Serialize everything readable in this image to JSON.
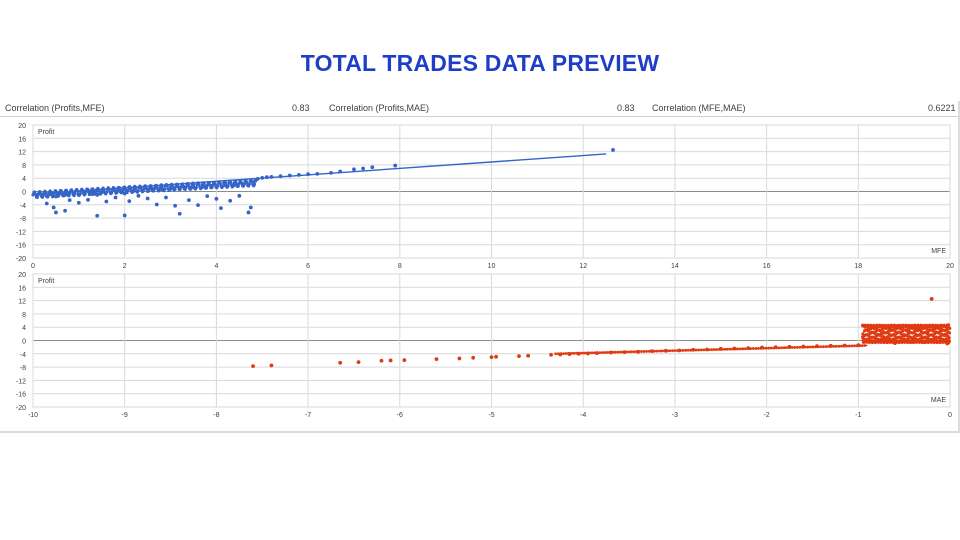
{
  "slide": {
    "title": "TOTAL TRADES DATA PREVIEW"
  },
  "correlations": [
    {
      "label": "Correlation (Profits,MFE)",
      "value": "0.83"
    },
    {
      "label": "Correlation (Profits,MAE)",
      "value": "0.83"
    },
    {
      "label": "Correlation (MFE,MAE)",
      "value": "0.6221"
    }
  ],
  "colors": {
    "mfe_series": "#3565c9",
    "mae_series": "#e03a12",
    "grid": "#d9d9d9",
    "axis_text": "#404040"
  },
  "chart_data": [
    {
      "type": "scatter",
      "title": "",
      "xlabel": "MFE",
      "ylabel": "Profit",
      "xlim": [
        0,
        20
      ],
      "ylim": [
        -20,
        20
      ],
      "xticks": [
        "0",
        "2",
        "4",
        "6",
        "8",
        "10",
        "12",
        "14",
        "16",
        "18",
        "20"
      ],
      "yticks": [
        "20",
        "16",
        "12",
        "8",
        "4",
        "0",
        "-4",
        "-8",
        "-12",
        "-16",
        "-20"
      ],
      "grid": true,
      "trendline": [
        [
          0,
          -0.8
        ],
        [
          12.5,
          11.3
        ]
      ],
      "series": [
        {
          "points": [
            [
              0.1,
              -1.0
            ],
            [
              0.2,
              -1.2
            ],
            [
              0.25,
              -0.5
            ],
            [
              0.3,
              -1.4
            ],
            [
              0.3,
              -3.6
            ],
            [
              0.4,
              -0.8
            ],
            [
              0.45,
              -4.8
            ],
            [
              0.5,
              -1.5
            ],
            [
              0.5,
              -6.3
            ],
            [
              0.6,
              -0.6
            ],
            [
              0.7,
              -5.8
            ],
            [
              0.7,
              -1.0
            ],
            [
              0.8,
              -2.6
            ],
            [
              0.9,
              -0.7
            ],
            [
              1.0,
              -1.1
            ],
            [
              1.0,
              -3.4
            ],
            [
              1.1,
              -0.4
            ],
            [
              1.2,
              -2.5
            ],
            [
              1.3,
              -0.8
            ],
            [
              1.4,
              -7.3
            ],
            [
              1.4,
              -1.0
            ],
            [
              1.5,
              -0.2
            ],
            [
              1.6,
              -3.0
            ],
            [
              1.7,
              -0.5
            ],
            [
              1.8,
              -1.8
            ],
            [
              1.9,
              0.1
            ],
            [
              2.0,
              -0.6
            ],
            [
              2.0,
              -7.2
            ],
            [
              2.1,
              -2.9
            ],
            [
              2.2,
              0.2
            ],
            [
              2.3,
              -1.3
            ],
            [
              2.4,
              0.4
            ],
            [
              2.5,
              -2.1
            ],
            [
              2.6,
              0.5
            ],
            [
              2.7,
              -3.9
            ],
            [
              2.8,
              0.7
            ],
            [
              2.9,
              -1.8
            ],
            [
              3.0,
              0.8
            ],
            [
              3.1,
              -4.3
            ],
            [
              3.2,
              -6.7
            ],
            [
              3.3,
              1.1
            ],
            [
              3.4,
              -2.6
            ],
            [
              3.5,
              1.2
            ],
            [
              3.6,
              -4.1
            ],
            [
              3.7,
              1.4
            ],
            [
              3.8,
              -1.4
            ],
            [
              3.9,
              1.5
            ],
            [
              4.0,
              -2.2
            ],
            [
              4.1,
              -5.0
            ],
            [
              4.2,
              1.8
            ],
            [
              4.3,
              -2.8
            ],
            [
              4.4,
              2.0
            ],
            [
              4.5,
              -1.3
            ],
            [
              4.6,
              2.2
            ],
            [
              4.7,
              -6.3
            ],
            [
              4.75,
              -4.8
            ],
            [
              4.8,
              2.6
            ],
            [
              4.85,
              3.2
            ],
            [
              4.9,
              3.8
            ],
            [
              5.0,
              4.1
            ],
            [
              5.1,
              4.3
            ],
            [
              5.2,
              4.4
            ],
            [
              5.4,
              4.6
            ],
            [
              5.6,
              4.8
            ],
            [
              5.8,
              5.0
            ],
            [
              6.0,
              5.2
            ],
            [
              6.2,
              5.3
            ],
            [
              6.5,
              5.6
            ],
            [
              6.7,
              6.0
            ],
            [
              7.0,
              6.7
            ],
            [
              7.2,
              6.9
            ],
            [
              7.4,
              7.3
            ],
            [
              7.9,
              7.8
            ],
            [
              12.65,
              12.5
            ]
          ]
        }
      ]
    },
    {
      "type": "scatter",
      "title": "",
      "xlabel": "MAE",
      "ylabel": "Profit",
      "xlim": [
        -10,
        0
      ],
      "ylim": [
        -20,
        20
      ],
      "xticks": [
        "-10",
        "-9",
        "-8",
        "-7",
        "-6",
        "-5",
        "-4",
        "-3",
        "-2",
        "-1",
        "0"
      ],
      "yticks": [
        "20",
        "16",
        "12",
        "8",
        "4",
        "0",
        "-4",
        "-8",
        "-12",
        "-16",
        "-20"
      ],
      "grid": true,
      "trendline": [
        [
          -4.3,
          -4.0
        ],
        [
          -0.9,
          -1.5
        ]
      ],
      "series": [
        {
          "points": [
            [
              -7.6,
              -7.7
            ],
            [
              -7.4,
              -7.5
            ],
            [
              -6.65,
              -6.7
            ],
            [
              -6.45,
              -6.5
            ],
            [
              -6.2,
              -6.1
            ],
            [
              -6.1,
              -6.0
            ],
            [
              -5.95,
              -5.9
            ],
            [
              -5.6,
              -5.6
            ],
            [
              -5.35,
              -5.4
            ],
            [
              -5.2,
              -5.2
            ],
            [
              -5.0,
              -5.0
            ],
            [
              -4.95,
              -4.9
            ],
            [
              -4.7,
              -4.7
            ],
            [
              -4.6,
              -4.6
            ],
            [
              -4.35,
              -4.3
            ],
            [
              -4.25,
              -4.2
            ],
            [
              -4.15,
              -4.1
            ],
            [
              -4.05,
              -4.0
            ],
            [
              -3.95,
              -3.9
            ],
            [
              -3.85,
              -3.8
            ],
            [
              -3.7,
              -3.6
            ],
            [
              -3.55,
              -3.5
            ],
            [
              -3.4,
              -3.4
            ],
            [
              -3.25,
              -3.2
            ],
            [
              -3.1,
              -3.1
            ],
            [
              -2.95,
              -3.0
            ],
            [
              -2.8,
              -2.8
            ],
            [
              -2.65,
              -2.7
            ],
            [
              -2.5,
              -2.5
            ],
            [
              -2.35,
              -2.4
            ],
            [
              -2.2,
              -2.3
            ],
            [
              -2.05,
              -2.1
            ],
            [
              -1.9,
              -2.0
            ],
            [
              -1.75,
              -1.9
            ],
            [
              -1.6,
              -1.8
            ],
            [
              -1.45,
              -1.7
            ],
            [
              -1.3,
              -1.6
            ],
            [
              -1.15,
              -1.5
            ],
            [
              -1.0,
              -1.4
            ],
            [
              -0.95,
              4.5
            ],
            [
              -0.95,
              1.0
            ],
            [
              -0.9,
              3.2
            ],
            [
              -0.85,
              -0.2
            ],
            [
              -0.8,
              4.1
            ],
            [
              -0.75,
              2.0
            ],
            [
              -0.7,
              0.5
            ],
            [
              -0.65,
              3.6
            ],
            [
              -0.6,
              -0.8
            ],
            [
              -0.55,
              4.4
            ],
            [
              -0.5,
              1.5
            ],
            [
              -0.45,
              2.8
            ],
            [
              -0.4,
              0.2
            ],
            [
              -0.35,
              3.9
            ],
            [
              -0.3,
              -0.5
            ],
            [
              -0.25,
              2.3
            ],
            [
              -0.2,
              12.5
            ],
            [
              -0.18,
              4.2
            ],
            [
              -0.15,
              0.8
            ],
            [
              -0.1,
              3.0
            ],
            [
              -0.08,
              -0.3
            ],
            [
              -0.05,
              1.8
            ],
            [
              -0.03,
              -0.9
            ],
            [
              -0.02,
              4.6
            ],
            [
              -0.01,
              -0.2
            ]
          ]
        }
      ]
    }
  ]
}
